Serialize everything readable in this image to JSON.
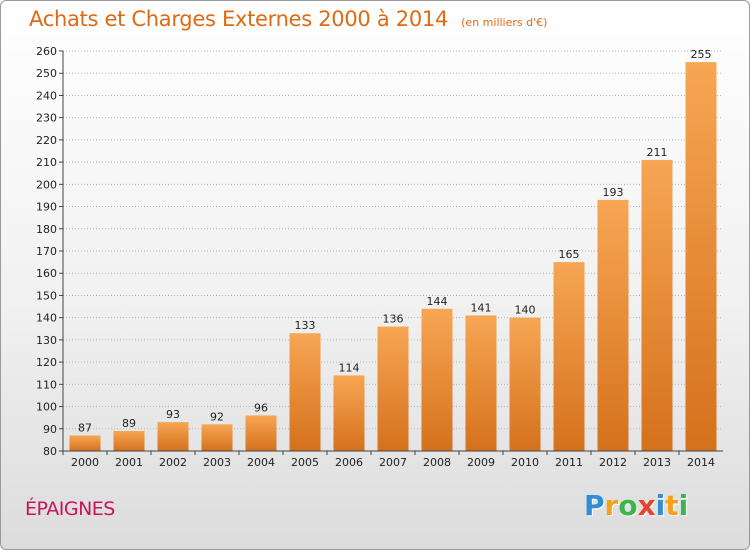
{
  "chart_data": {
    "type": "bar",
    "title": "Achats et Charges Externes 2000 à 2014",
    "subtitle": "(en milliers d'€)",
    "categories": [
      "2000",
      "2001",
      "2002",
      "2003",
      "2004",
      "2005",
      "2006",
      "2007",
      "2008",
      "2009",
      "2010",
      "2011",
      "2012",
      "2013",
      "2014"
    ],
    "values": [
      87,
      89,
      93,
      92,
      96,
      133,
      114,
      136,
      144,
      141,
      140,
      165,
      193,
      211,
      255
    ],
    "ylim": [
      80,
      260
    ],
    "yticks": [
      80,
      90,
      100,
      110,
      120,
      130,
      140,
      150,
      160,
      170,
      180,
      190,
      200,
      210,
      220,
      230,
      240,
      250,
      260
    ],
    "grid": true,
    "bar_color": "#e8892f"
  },
  "commune": "ÉPAIGNES",
  "logo": {
    "text": "Proxiti",
    "colors": [
      "#2e8fd8",
      "#f3a21a",
      "#3db54a",
      "#e8432f",
      "#2e8fd8",
      "#f3a21a",
      "#3db54a"
    ]
  }
}
